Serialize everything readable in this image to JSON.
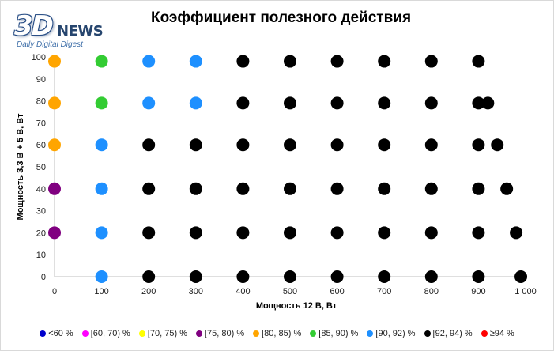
{
  "logo": {
    "mark": "3D",
    "word": "NEWS",
    "tagline": "Daily Digital Digest"
  },
  "chart_data": {
    "type": "scatter",
    "title": "Коэффициент полезного действия",
    "xlabel": "Мощность  12 В, Вт",
    "ylabel": "Мощность  3,3 В + 5 В, Вт",
    "xlim": [
      0,
      1000
    ],
    "ylim": [
      0,
      100
    ],
    "x_ticks": [
      0,
      100,
      200,
      300,
      400,
      500,
      600,
      700,
      800,
      900,
      1000
    ],
    "x_tick_labels": [
      "0",
      "100",
      "200",
      "300",
      "400",
      "500",
      "600",
      "700",
      "800",
      "900",
      "1 000"
    ],
    "y_ticks": [
      0,
      10,
      20,
      30,
      40,
      50,
      60,
      70,
      80,
      90,
      100
    ],
    "grid": false,
    "legend_position": "bottom",
    "series": [
      {
        "name": "<60 %",
        "color": "#0000cc",
        "points": []
      },
      {
        "name": "[60, 70) %",
        "color": "#ff00ff",
        "points": []
      },
      {
        "name": "[70, 75) %",
        "color": "#ffff00",
        "points": []
      },
      {
        "name": "[75, 80) %",
        "color": "#800080",
        "points": [
          [
            0,
            40
          ],
          [
            0,
            20
          ]
        ]
      },
      {
        "name": "[80, 85) %",
        "color": "#ffa500",
        "points": [
          [
            0,
            98
          ],
          [
            0,
            79
          ],
          [
            0,
            60
          ]
        ]
      },
      {
        "name": "[85, 90) %",
        "color": "#33cc33",
        "points": [
          [
            100,
            98
          ],
          [
            100,
            79
          ]
        ]
      },
      {
        "name": "[90, 92) %",
        "color": "#1e90ff",
        "points": [
          [
            200,
            98
          ],
          [
            300,
            98
          ],
          [
            200,
            79
          ],
          [
            300,
            79
          ],
          [
            100,
            60
          ],
          [
            100,
            40
          ],
          [
            100,
            20
          ],
          [
            100,
            0
          ]
        ]
      },
      {
        "name": "[92, 94) %",
        "color": "#000000",
        "points": [
          [
            400,
            98
          ],
          [
            500,
            98
          ],
          [
            600,
            98
          ],
          [
            700,
            98
          ],
          [
            800,
            98
          ],
          [
            900,
            98
          ],
          [
            400,
            79
          ],
          [
            500,
            79
          ],
          [
            600,
            79
          ],
          [
            700,
            79
          ],
          [
            800,
            79
          ],
          [
            900,
            79
          ],
          [
            920,
            79
          ],
          [
            200,
            60
          ],
          [
            300,
            60
          ],
          [
            400,
            60
          ],
          [
            500,
            60
          ],
          [
            600,
            60
          ],
          [
            700,
            60
          ],
          [
            800,
            60
          ],
          [
            900,
            60
          ],
          [
            940,
            60
          ],
          [
            200,
            40
          ],
          [
            300,
            40
          ],
          [
            400,
            40
          ],
          [
            500,
            40
          ],
          [
            600,
            40
          ],
          [
            700,
            40
          ],
          [
            800,
            40
          ],
          [
            900,
            40
          ],
          [
            960,
            40
          ],
          [
            200,
            20
          ],
          [
            300,
            20
          ],
          [
            400,
            20
          ],
          [
            500,
            20
          ],
          [
            600,
            20
          ],
          [
            700,
            20
          ],
          [
            800,
            20
          ],
          [
            900,
            20
          ],
          [
            980,
            20
          ],
          [
            200,
            0
          ],
          [
            300,
            0
          ],
          [
            400,
            0
          ],
          [
            500,
            0
          ],
          [
            600,
            0
          ],
          [
            700,
            0
          ],
          [
            800,
            0
          ],
          [
            900,
            0
          ],
          [
            990,
            0
          ]
        ]
      },
      {
        "name": "≥94 %",
        "color": "#ff0000",
        "points": []
      }
    ]
  }
}
